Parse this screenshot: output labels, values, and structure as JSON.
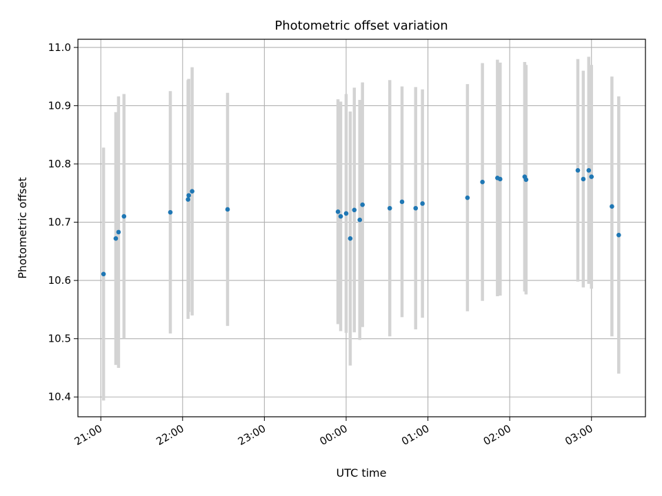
{
  "chart_data": {
    "type": "scatter",
    "title": "Photometric offset variation",
    "xlabel": "UTC time",
    "ylabel": "Photometric offset",
    "x_ticks": [
      "21:00",
      "22:00",
      "23:00",
      "00:00",
      "01:00",
      "02:00",
      "03:00"
    ],
    "y_ticks": [
      "10.4",
      "10.5",
      "10.6",
      "10.7",
      "10.8",
      "10.9",
      "11.0"
    ],
    "xlim": [
      "20:43:12",
      "03:39:36"
    ],
    "ylim": [
      10.366,
      11.014
    ],
    "grid": true,
    "colors": {
      "points": "#1f77b4",
      "errorbars": "#d3d3d3",
      "grid": "#b0b0b0"
    },
    "points": [
      {
        "time": "21:02",
        "y": 10.611,
        "err": 0.217
      },
      {
        "time": "21:11",
        "y": 10.672,
        "err": 0.217
      },
      {
        "time": "21:13",
        "y": 10.683,
        "err": 0.233
      },
      {
        "time": "21:17",
        "y": 10.71,
        "err": 0.21
      },
      {
        "time": "21:51",
        "y": 10.717,
        "err": 0.208
      },
      {
        "time": "22:04",
        "y": 10.739,
        "err": 0.205
      },
      {
        "time": "22:04:30",
        "y": 10.746,
        "err": 0.2
      },
      {
        "time": "22:07",
        "y": 10.753,
        "err": 0.213
      },
      {
        "time": "22:33",
        "y": 10.722,
        "err": 0.2
      },
      {
        "time": "23:54",
        "y": 10.718,
        "err": 0.193
      },
      {
        "time": "23:56",
        "y": 10.71,
        "err": 0.197
      },
      {
        "time": "00:00",
        "y": 10.715,
        "err": 0.205
      },
      {
        "time": "00:03",
        "y": 10.672,
        "err": 0.218
      },
      {
        "time": "00:06",
        "y": 10.721,
        "err": 0.21
      },
      {
        "time": "00:10",
        "y": 10.704,
        "err": 0.206
      },
      {
        "time": "00:12",
        "y": 10.73,
        "err": 0.21
      },
      {
        "time": "00:32",
        "y": 10.724,
        "err": 0.22
      },
      {
        "time": "00:41",
        "y": 10.735,
        "err": 0.198
      },
      {
        "time": "00:51",
        "y": 10.724,
        "err": 0.208
      },
      {
        "time": "00:56",
        "y": 10.732,
        "err": 0.196
      },
      {
        "time": "01:29",
        "y": 10.742,
        "err": 0.195
      },
      {
        "time": "01:40",
        "y": 10.769,
        "err": 0.204
      },
      {
        "time": "01:51",
        "y": 10.776,
        "err": 0.203
      },
      {
        "time": "01:53",
        "y": 10.774,
        "err": 0.2
      },
      {
        "time": "02:11",
        "y": 10.778,
        "err": 0.197
      },
      {
        "time": "02:12",
        "y": 10.773,
        "err": 0.197
      },
      {
        "time": "02:50",
        "y": 10.789,
        "err": 0.191
      },
      {
        "time": "02:54",
        "y": 10.774,
        "err": 0.186
      },
      {
        "time": "02:58",
        "y": 10.789,
        "err": 0.195
      },
      {
        "time": "03:00",
        "y": 10.778,
        "err": 0.192
      },
      {
        "time": "03:15",
        "y": 10.727,
        "err": 0.223
      },
      {
        "time": "03:20",
        "y": 10.678,
        "err": 0.238
      }
    ]
  }
}
